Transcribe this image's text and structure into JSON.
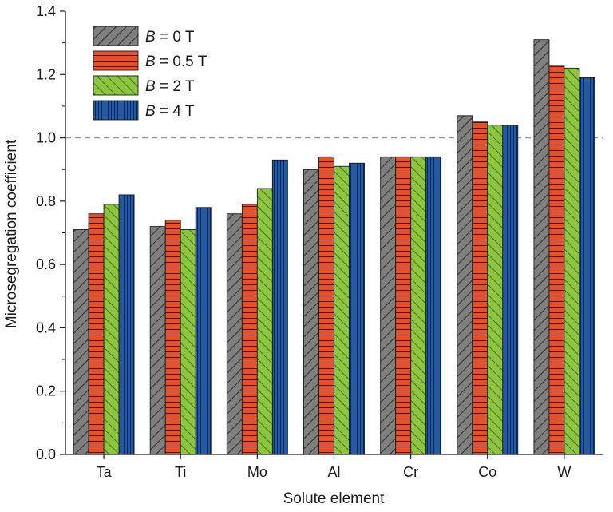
{
  "chart_data": {
    "type": "bar",
    "xlabel": "Solute element",
    "ylabel": "Microsegregation coefficient",
    "categories": [
      "Ta",
      "Ti",
      "Mo",
      "Al",
      "Cr",
      "Co",
      "W"
    ],
    "ylim": [
      0,
      1.4
    ],
    "yticks": [
      "0.0",
      "0.2",
      "0.4",
      "0.6",
      "0.8",
      "1.0",
      "1.2",
      "1.4"
    ],
    "reference_line": {
      "y": 1.0,
      "style": "dashed",
      "color": "#9a9a9a"
    },
    "legend_position": "top-left",
    "series": [
      {
        "name_italic": "B",
        "name_rest": " = 0 T",
        "color": "#7f7f7f",
        "pattern": "diagonal",
        "values": [
          0.71,
          0.72,
          0.76,
          0.9,
          0.94,
          1.07,
          1.31
        ]
      },
      {
        "name_italic": "B",
        "name_rest": " = 0.5 T",
        "color": "#e8502b",
        "pattern": "horizontal",
        "values": [
          0.76,
          0.74,
          0.79,
          0.94,
          0.94,
          1.05,
          1.23
        ]
      },
      {
        "name_italic": "B",
        "name_rest": " = 2 T",
        "color": "#8cc63f",
        "pattern": "anti-diagonal",
        "values": [
          0.79,
          0.71,
          0.84,
          0.91,
          0.94,
          1.04,
          1.22
        ]
      },
      {
        "name_italic": "B",
        "name_rest": " = 4 T",
        "color": "#1f5aa6",
        "pattern": "vertical",
        "values": [
          0.82,
          0.78,
          0.93,
          0.92,
          0.94,
          1.04,
          1.19
        ]
      }
    ]
  }
}
